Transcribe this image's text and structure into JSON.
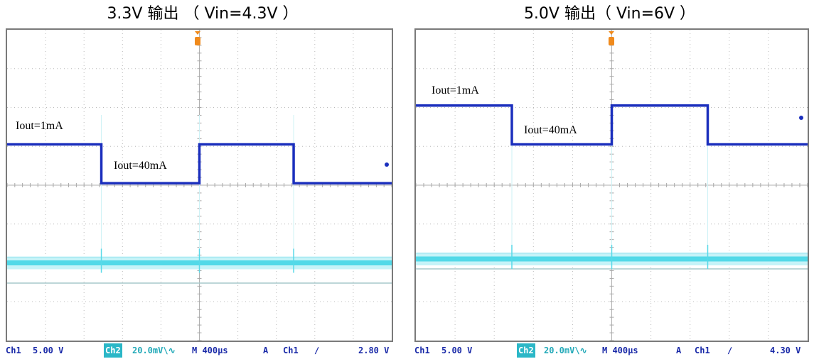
{
  "chart_data": [
    {
      "type": "line",
      "title": "3.3V 输出 （ Vin=4.3V ）",
      "series": [
        {
          "name": "Ch1",
          "x_div": [
            0,
            2.45,
            2.45,
            5.0,
            5.0,
            7.45,
            7.45,
            10.0
          ],
          "y_div": [
            5.05,
            5.05,
            4.05,
            4.05,
            5.05,
            5.05,
            4.05,
            4.05
          ],
          "color": "#1b2fbd"
        },
        {
          "name": "Ch2",
          "x_div": [
            0,
            10
          ],
          "y_div": [
            2.0,
            2.0
          ],
          "color": "#3fd5e6"
        }
      ],
      "annotations": [
        "Iout=1mA",
        "Iout=40mA"
      ],
      "status": {
        "ch1": "Ch1",
        "ch1_scale": "5.00 V",
        "ch2": "Ch2",
        "ch2_scale": "20.0mV\\∿",
        "time": "M 400µs",
        "trig_mode": "A",
        "trig_src": "Ch1",
        "trig_slope": "∕",
        "trig_level": "2.80 V"
      }
    },
    {
      "type": "line",
      "title": "5.0V 输出（ Vin=6V ）",
      "series": [
        {
          "name": "Ch1",
          "x_div": [
            0,
            2.45,
            2.45,
            5.0,
            5.0,
            7.45,
            7.45,
            10.0
          ],
          "y_div": [
            6.05,
            6.05,
            5.05,
            5.05,
            6.05,
            6.05,
            5.05,
            5.05
          ],
          "color": "#1b2fbd"
        },
        {
          "name": "Ch2",
          "x_div": [
            0,
            10
          ],
          "y_div": [
            2.1,
            2.1
          ],
          "color": "#3fd5e6"
        }
      ],
      "annotations": [
        "Iout=1mA",
        "Iout=40mA"
      ],
      "status": {
        "ch1": "Ch1",
        "ch1_scale": "5.00 V",
        "ch2": "Ch2",
        "ch2_scale": "20.0mV\\∿",
        "time": "M 400µs",
        "trig_mode": "A",
        "trig_src": "Ch1",
        "trig_slope": "∕",
        "trig_level": "4.30 V"
      }
    }
  ]
}
